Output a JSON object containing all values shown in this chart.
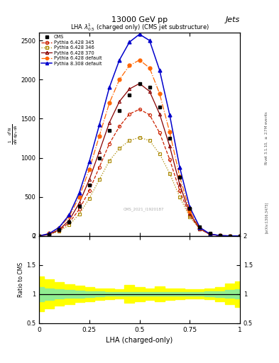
{
  "title_top": "13000 GeV pp",
  "title_right": "Jets",
  "plot_title": "LHA $\\lambda^{1}_{0.5}$ (charged only) (CMS jet substructure)",
  "xlabel": "LHA (charged-only)",
  "ylabel_ratio": "Ratio to CMS",
  "ylabel_side": "Rivet 3.1.10, $\\geq$ 2.7M events",
  "ylabel_side2": "[arXiv:1306.3475]",
  "watermark": "CMS_2021_I192‘1‘5‘7",
  "xvalues": [
    0.0,
    0.05,
    0.1,
    0.15,
    0.2,
    0.25,
    0.3,
    0.35,
    0.4,
    0.45,
    0.5,
    0.55,
    0.6,
    0.65,
    0.7,
    0.75,
    0.8,
    0.85,
    0.9,
    0.95,
    1.0
  ],
  "cms_data": [
    0.0,
    0.02,
    0.08,
    0.18,
    0.38,
    0.65,
    1.0,
    1.35,
    1.6,
    1.8,
    1.95,
    1.9,
    1.65,
    1.25,
    0.75,
    0.35,
    0.12,
    0.03,
    0.005,
    0.001,
    0.0
  ],
  "py6_345": [
    0.0,
    0.02,
    0.07,
    0.17,
    0.34,
    0.58,
    0.88,
    1.18,
    1.4,
    1.56,
    1.62,
    1.55,
    1.32,
    0.98,
    0.58,
    0.26,
    0.09,
    0.02,
    0.004,
    0.001,
    0.0
  ],
  "py6_346": [
    0.0,
    0.02,
    0.06,
    0.14,
    0.28,
    0.48,
    0.72,
    0.96,
    1.12,
    1.22,
    1.26,
    1.22,
    1.05,
    0.8,
    0.5,
    0.24,
    0.09,
    0.025,
    0.005,
    0.001,
    0.0
  ],
  "py6_370": [
    0.0,
    0.02,
    0.08,
    0.2,
    0.42,
    0.72,
    1.08,
    1.45,
    1.72,
    1.88,
    1.95,
    1.85,
    1.56,
    1.15,
    0.66,
    0.29,
    0.09,
    0.022,
    0.004,
    0.001,
    0.0
  ],
  "py6_default": [
    0.0,
    0.03,
    0.1,
    0.25,
    0.5,
    0.85,
    1.28,
    1.7,
    2.0,
    2.18,
    2.25,
    2.15,
    1.82,
    1.33,
    0.76,
    0.32,
    0.1,
    0.024,
    0.004,
    0.001,
    0.0
  ],
  "py8_default": [
    0.0,
    0.03,
    0.11,
    0.27,
    0.55,
    0.95,
    1.42,
    1.9,
    2.25,
    2.48,
    2.58,
    2.5,
    2.12,
    1.55,
    0.88,
    0.37,
    0.11,
    0.026,
    0.005,
    0.001,
    0.0
  ],
  "ratio_x": [
    0.0,
    0.05,
    0.1,
    0.15,
    0.2,
    0.25,
    0.3,
    0.35,
    0.4,
    0.45,
    0.5,
    0.55,
    0.6,
    0.65,
    0.7,
    0.75,
    0.8,
    0.85,
    0.9,
    0.95,
    1.0
  ],
  "ratio_green_lo": [
    0.88,
    0.9,
    0.92,
    0.93,
    0.94,
    0.95,
    0.96,
    0.97,
    0.97,
    0.97,
    0.97,
    0.97,
    0.97,
    0.97,
    0.97,
    0.97,
    0.97,
    0.96,
    0.95,
    0.93,
    0.92
  ],
  "ratio_green_hi": [
    1.12,
    1.1,
    1.08,
    1.07,
    1.06,
    1.05,
    1.04,
    1.03,
    1.03,
    1.03,
    1.03,
    1.03,
    1.03,
    1.03,
    1.03,
    1.03,
    1.03,
    1.04,
    1.05,
    1.07,
    1.08
  ],
  "ratio_yellow_lo": [
    0.7,
    0.75,
    0.8,
    0.83,
    0.86,
    0.88,
    0.9,
    0.91,
    0.92,
    0.85,
    0.88,
    0.9,
    0.87,
    0.9,
    0.91,
    0.92,
    0.92,
    0.91,
    0.88,
    0.82,
    0.78
  ],
  "ratio_yellow_hi": [
    1.3,
    1.25,
    1.2,
    1.17,
    1.14,
    1.12,
    1.1,
    1.09,
    1.08,
    1.15,
    1.12,
    1.1,
    1.13,
    1.1,
    1.09,
    1.08,
    1.08,
    1.09,
    1.12,
    1.18,
    1.22
  ],
  "color_cms": "#000000",
  "color_py6_345": "#cc2200",
  "color_py6_346": "#aa8800",
  "color_py6_370": "#880000",
  "color_py6_default": "#ff6600",
  "color_py8_default": "#0000cc",
  "ylim_main": [
    0.0,
    2.6
  ],
  "yticks_main": [
    0.0,
    0.5,
    1.0,
    1.5,
    2.0,
    2.5
  ],
  "ytick_labels_main": [
    "0",
    "500",
    "1000",
    "1500",
    "2000",
    "2500"
  ],
  "ylim_ratio": [
    0.5,
    2.0
  ],
  "yticks_ratio": [
    0.5,
    1.0,
    1.5,
    2.0
  ],
  "ytick_labels_ratio": [
    "0.5",
    "1",
    "1.5",
    "2"
  ],
  "xticks": [
    0.0,
    0.25,
    0.5,
    0.75,
    1.0
  ],
  "xtick_labels": [
    "0",
    "0.25",
    "0.5",
    "0.75",
    "1"
  ],
  "xlim": [
    0.0,
    1.0
  ]
}
